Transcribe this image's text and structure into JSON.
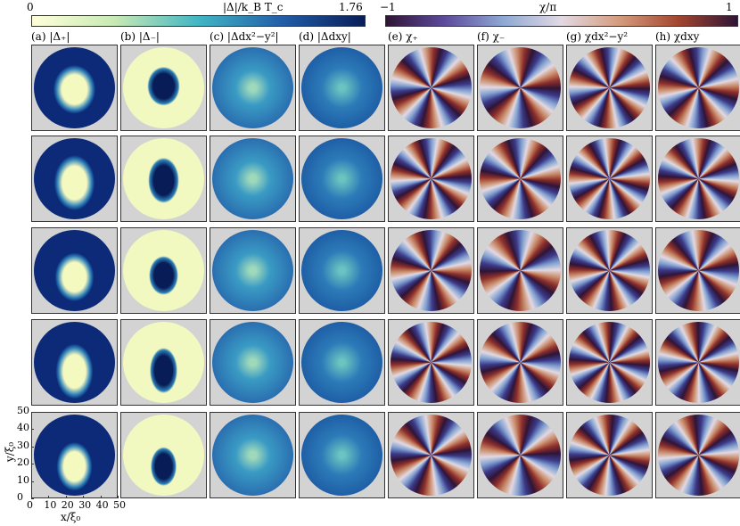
{
  "colorbars": [
    {
      "label": "|Δ|/k_B T_c",
      "ticks": [
        "0",
        "1.76"
      ]
    },
    {
      "label": "χ/π",
      "ticks": [
        "−1",
        "1"
      ]
    }
  ],
  "panels": [
    "(a) |Δ₊|",
    "(b) |Δ₋|",
    "(c) |Δdx²−y²|",
    "(d) |Δdxy|",
    "(e) χ₊",
    "(f) χ₋",
    "(g) χdx²−y²",
    "(h) χdxy"
  ],
  "axes": {
    "ylabel": "y/ξ₀",
    "xlabel": "x/ξ₀",
    "yticks": [
      "0",
      "10",
      "20",
      "30",
      "40",
      "50"
    ],
    "xticks": [
      "0",
      "10",
      "20",
      "30",
      "40",
      "50"
    ]
  }
}
